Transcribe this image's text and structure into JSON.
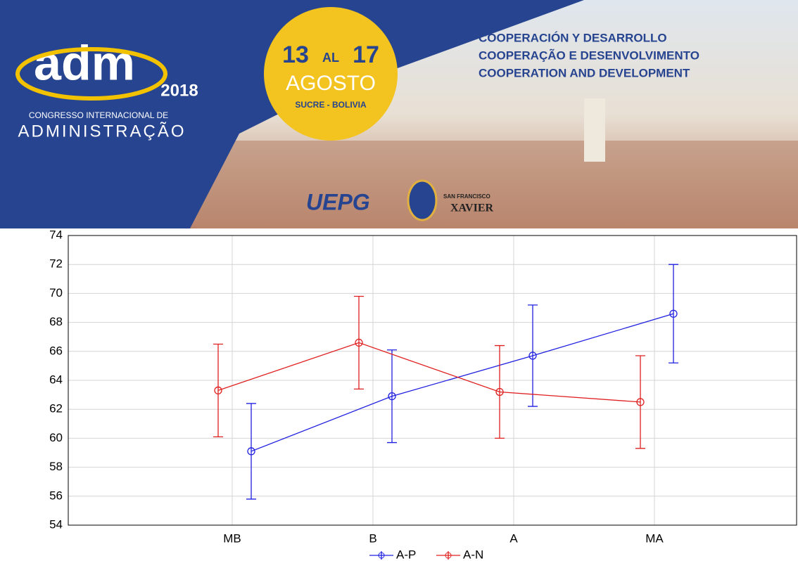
{
  "banner": {
    "logo": "adm",
    "year": "2018",
    "congress": "CONGRESSO INTERNACIONAL DE",
    "admin": "ADMINISTRAÇÃO",
    "day_start": "13",
    "al": "AL",
    "day_end": "17",
    "month": "AGOSTO",
    "place": "SUCRE - BOLIVIA",
    "lines": [
      "COOPERACIÓN Y DESARROLLO",
      "COOPERAÇÃO E DESENVOLVIMENTO",
      "COOPERATION AND DEVELOPMENT"
    ],
    "uepg": "UEPG",
    "uni_small": "SAN FRANCISCO",
    "uni": "XAVIER"
  },
  "chart_data": {
    "type": "line",
    "categories": [
      "MB",
      "B",
      "A",
      "MA"
    ],
    "series": [
      {
        "name": "A-P",
        "color": "#2020e0",
        "values": [
          59.1,
          62.9,
          65.7,
          68.6
        ],
        "errors": [
          3.3,
          3.2,
          3.5,
          3.4
        ]
      },
      {
        "name": "A-N",
        "color": "#e02020",
        "values": [
          63.3,
          66.6,
          63.2,
          62.5
        ],
        "errors": [
          3.2,
          3.2,
          3.2,
          3.2
        ]
      }
    ],
    "ylim": [
      54,
      74
    ],
    "yticks": [
      54,
      56,
      58,
      60,
      62,
      64,
      66,
      68,
      70,
      72,
      74
    ],
    "grid": true,
    "legend": "bottom"
  }
}
